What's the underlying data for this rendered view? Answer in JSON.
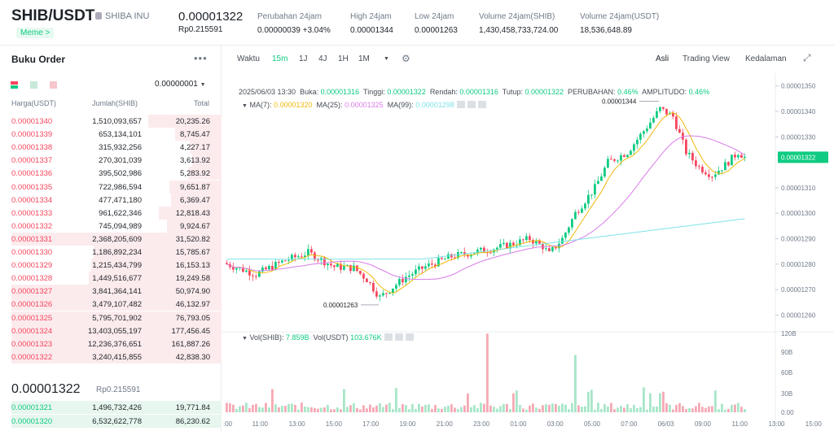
{
  "header": {
    "pair": "SHIB/USDT",
    "coin": "SHIBA INU",
    "tag": "Meme >",
    "price": "0.00001322",
    "price_idr": "Rp0.215591",
    "stats": [
      {
        "label": "Perubahan 24jam",
        "value": "0.00000039 +3.04%",
        "color": "green"
      },
      {
        "label": "High 24jam",
        "value": "0.00001344",
        "color": "dark"
      },
      {
        "label": "Low 24jam",
        "value": "0.00001263",
        "color": "dark"
      },
      {
        "label": "Volume 24jam(SHIB)",
        "value": "1,430,458,733,724.00",
        "color": "dark"
      },
      {
        "label": "Volume 24jam(USDT)",
        "value": "18,536,648.89",
        "color": "dark"
      }
    ]
  },
  "orderbook": {
    "title": "Buku Order",
    "more": "•••",
    "precision": "0.00000001",
    "headers": {
      "price": "Harga(USDT)",
      "amount": "Jumlah(SHIB)",
      "total": "Total"
    },
    "asks": [
      {
        "p": "0.00001340",
        "a": "1,510,093,657",
        "t": "20,235.26",
        "d": 0.35
      },
      {
        "p": "0.00001339",
        "a": "653,134,101",
        "t": "8,745.47",
        "d": 0.22
      },
      {
        "p": "0.00001338",
        "a": "315,932,256",
        "t": "4,227.17",
        "d": 0.15
      },
      {
        "p": "0.00001337",
        "a": "270,301,039",
        "t": "3,613.92",
        "d": 0.14
      },
      {
        "p": "0.00001336",
        "a": "395,502,986",
        "t": "5,283.92",
        "d": 0.16
      },
      {
        "p": "0.00001335",
        "a": "722,986,594",
        "t": "9,651.87",
        "d": 0.25
      },
      {
        "p": "0.00001334",
        "a": "477,471,180",
        "t": "6,369.47",
        "d": 0.24
      },
      {
        "p": "0.00001333",
        "a": "961,622,346",
        "t": "12,818.43",
        "d": 0.3
      },
      {
        "p": "0.00001332",
        "a": "745,094,989",
        "t": "9,924.67",
        "d": 0.26
      },
      {
        "p": "0.00001331",
        "a": "2,368,205,609",
        "t": "31,520.82",
        "d": 1.0
      },
      {
        "p": "0.00001330",
        "a": "1,186,892,234",
        "t": "15,785.67",
        "d": 0.61
      },
      {
        "p": "0.00001329",
        "a": "1,215,434,799",
        "t": "16,153.13",
        "d": 0.62
      },
      {
        "p": "0.00001328",
        "a": "1,449,516,677",
        "t": "19,249.58",
        "d": 0.63
      },
      {
        "p": "0.00001327",
        "a": "3,841,364,141",
        "t": "50,974.90",
        "d": 1.0
      },
      {
        "p": "0.00001326",
        "a": "3,479,107,482",
        "t": "46,132.97",
        "d": 1.0
      },
      {
        "p": "0.00001325",
        "a": "5,795,701,902",
        "t": "76,793.05",
        "d": 1.0
      },
      {
        "p": "0.00001324",
        "a": "13,403,055,197",
        "t": "177,456.45",
        "d": 1.0
      },
      {
        "p": "0.00001323",
        "a": "12,236,376,651",
        "t": "161,887.26",
        "d": 1.0
      },
      {
        "p": "0.00001322",
        "a": "3,240,415,855",
        "t": "42,838.30",
        "d": 1.0
      }
    ],
    "mid_price": "0.00001322",
    "mid_idr": "Rp0.215591",
    "bids": [
      {
        "p": "0.00001321",
        "a": "1,496,732,426",
        "t": "19,771.84",
        "d": 1.0
      },
      {
        "p": "0.00001320",
        "a": "6,532,622,778",
        "t": "86,230.62",
        "d": 1.0
      }
    ]
  },
  "toolbar": {
    "intervals": [
      "Waktu",
      "15m",
      "1J",
      "4J",
      "1H",
      "1M"
    ],
    "active": "15m",
    "views": [
      "Asli",
      "Trading View",
      "Kedalaman"
    ],
    "active_view": "Asli"
  },
  "chart_info": {
    "date": "2025/06/03 13:30",
    "open_l": "Buka:",
    "open": "0.00001316",
    "high_l": "Tinggi:",
    "high": "0.00001322",
    "low_l": "Rendah:",
    "low": "0.00001316",
    "close_l": "Tutup:",
    "close": "0.00001322",
    "chg_l": "PERUBAHAN:",
    "chg": "0.46%",
    "amp_l": "AMPLITUDO:",
    "amp": "0.46%",
    "ma7_l": "MA(7):",
    "ma7": "0.00001320",
    "ma25_l": "MA(25):",
    "ma25": "0.00001325",
    "ma99_l": "MA(99):",
    "ma99": "0.00001298",
    "vol_l": "Vol(SHIB):",
    "vol": "7.859B",
    "volu_l": "Vol(USDT)",
    "volu": "103.676K"
  },
  "chart_data": {
    "type": "candlestick",
    "y_ticks": [
      "0.00001350",
      "0.00001340",
      "0.00001330",
      "0.00001310",
      "0.00001300",
      "0.00001290",
      "0.00001280",
      "0.00001270",
      "0.00001260"
    ],
    "ylim": [
      1.256e-05,
      1.355e-05
    ],
    "current_price": "0.00001322",
    "high_label": "0.00001344",
    "low_label": "0.00001263",
    "x_ticks": [
      ":00",
      "11:00",
      "13:00",
      "15:00",
      "17:00",
      "19:00",
      "21:00",
      "23:00",
      "01:00",
      "03:00",
      "05:00",
      "07:00",
      "06/03",
      "09:00",
      "11:00",
      "13:00",
      "15:00"
    ],
    "vol_ticks": [
      "120B",
      "90B",
      "60B",
      "30B",
      "0.00"
    ],
    "colors": {
      "up": "#0ecb81",
      "down": "#f6465d",
      "ma7": "#f0b90b",
      "ma25": "#d97be8",
      "ma99": "#7ee2e8"
    }
  }
}
